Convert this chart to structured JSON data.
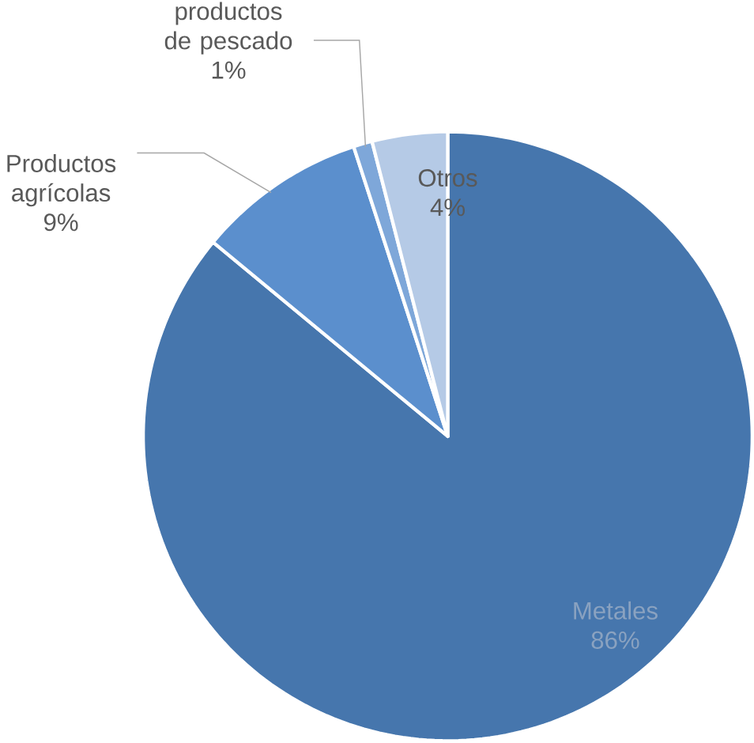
{
  "chart_data": {
    "type": "pie",
    "categories": [
      "Metales",
      "Productos agrícolas",
      "productos de pescado",
      "Otros"
    ],
    "values": [
      86,
      9,
      1,
      4
    ],
    "colors": [
      "#4676ad",
      "#5b8fcd",
      "#7ea7d9",
      "#b5cae6"
    ],
    "value_labels": [
      "86%",
      "9%",
      "1%",
      "4%"
    ]
  }
}
